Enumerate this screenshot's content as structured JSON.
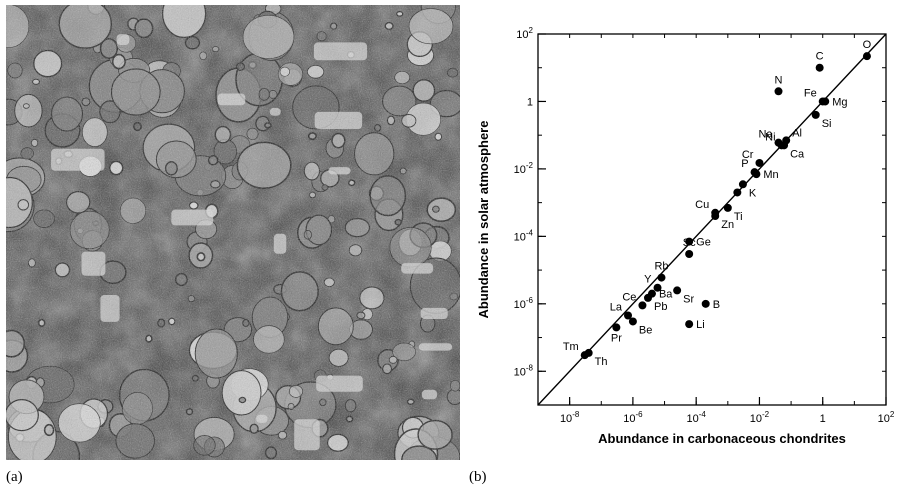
{
  "captions": {
    "a": "(a)",
    "b": "(b)"
  },
  "panel_a": {
    "type": "photograph",
    "subject": "meteorite-texture"
  },
  "chart_data": {
    "type": "scatter",
    "title": "",
    "xlabel": "Abundance in carbonaceous chondrites",
    "ylabel": "Abundance in solar atmosphere",
    "xscale": "log",
    "yscale": "log",
    "xlim": [
      1e-09,
      100
    ],
    "ylim": [
      1e-09,
      100
    ],
    "grid": false,
    "reference_line": "y = x",
    "x_ticks": [
      {
        "value": 1e-08,
        "label": "10-8",
        "base": "10",
        "exp": "-8"
      },
      {
        "value": 1e-06,
        "label": "10-6",
        "base": "10",
        "exp": "-6"
      },
      {
        "value": 0.0001,
        "label": "10-4",
        "base": "10",
        "exp": "-4"
      },
      {
        "value": 0.01,
        "label": "10-2",
        "base": "10",
        "exp": "-2"
      },
      {
        "value": 1,
        "label": "1",
        "base": "1",
        "exp": ""
      },
      {
        "value": 100,
        "label": "102",
        "base": "10",
        "exp": "2"
      }
    ],
    "y_ticks": [
      {
        "value": 100,
        "label": "102",
        "base": "10",
        "exp": "2"
      },
      {
        "value": 1,
        "label": "1",
        "base": "1",
        "exp": ""
      },
      {
        "value": 0.01,
        "label": "10-2",
        "base": "10",
        "exp": "-2"
      },
      {
        "value": 0.0001,
        "label": "10-4",
        "base": "10",
        "exp": "-4"
      },
      {
        "value": 1e-06,
        "label": "10-6",
        "base": "10",
        "exp": "-6"
      },
      {
        "value": 1e-08,
        "label": "10-8",
        "base": "10",
        "exp": "-8"
      }
    ],
    "points": [
      {
        "label": "O",
        "x": 25,
        "y": 22,
        "pos": "above"
      },
      {
        "label": "C",
        "x": 0.8,
        "y": 10,
        "pos": "above"
      },
      {
        "label": "N",
        "x": 0.04,
        "y": 2,
        "pos": "above"
      },
      {
        "label": "Fe",
        "x": 1,
        "y": 1,
        "pos": "leftup"
      },
      {
        "label": "Mg",
        "x": 1.2,
        "y": 1,
        "pos": "right"
      },
      {
        "label": "Si",
        "x": 0.6,
        "y": 0.4,
        "pos": "rightdown"
      },
      {
        "label": "Na",
        "x": 0.04,
        "y": 0.06,
        "pos": "leftup"
      },
      {
        "label": "Al",
        "x": 0.07,
        "y": 0.07,
        "pos": "rightup"
      },
      {
        "label": "Ni",
        "x": 0.05,
        "y": 0.05,
        "pos": "leftup"
      },
      {
        "label": "Ca",
        "x": 0.06,
        "y": 0.05,
        "pos": "rightdown"
      },
      {
        "label": "Cr",
        "x": 0.01,
        "y": 0.015,
        "pos": "leftup"
      },
      {
        "label": "P",
        "x": 0.007,
        "y": 0.008,
        "pos": "leftup"
      },
      {
        "label": "Mn",
        "x": 0.008,
        "y": 0.007,
        "pos": "right"
      },
      {
        "label": "K",
        "x": 0.003,
        "y": 0.0035,
        "pos": "rightdown"
      },
      {
        "label": "",
        "x": 0.002,
        "y": 0.002,
        "pos": "none"
      },
      {
        "label": "Cu",
        "x": 0.0004,
        "y": 0.0005,
        "pos": "leftup"
      },
      {
        "label": "Ti",
        "x": 0.001,
        "y": 0.0007,
        "pos": "rightdown"
      },
      {
        "label": "Zn",
        "x": 0.0004,
        "y": 0.0004,
        "pos": "rightdown"
      },
      {
        "label": "Sc",
        "x": 6e-05,
        "y": 3e-05,
        "pos": "above"
      },
      {
        "label": "Ge",
        "x": 6e-05,
        "y": 7e-05,
        "pos": "right"
      },
      {
        "label": "Rb",
        "x": 8e-06,
        "y": 6e-06,
        "pos": "above"
      },
      {
        "label": "Sr",
        "x": 2.5e-05,
        "y": 2.5e-06,
        "pos": "rightdown"
      },
      {
        "label": "Y",
        "x": 6e-06,
        "y": 3e-06,
        "pos": "leftup"
      },
      {
        "label": "Ba",
        "x": 4e-06,
        "y": 2e-06,
        "pos": "right"
      },
      {
        "label": "Pb",
        "x": 3e-06,
        "y": 1.5e-06,
        "pos": "rightdown"
      },
      {
        "label": "Ce",
        "x": 2e-06,
        "y": 9e-07,
        "pos": "leftup"
      },
      {
        "label": "B",
        "x": 0.0002,
        "y": 1e-06,
        "pos": "right"
      },
      {
        "label": "La",
        "x": 7e-07,
        "y": 4.5e-07,
        "pos": "leftup"
      },
      {
        "label": "Pr",
        "x": 3e-07,
        "y": 2e-07,
        "pos": "below"
      },
      {
        "label": "Be",
        "x": 1e-06,
        "y": 3e-07,
        "pos": "rightdown"
      },
      {
        "label": "Li",
        "x": 6e-05,
        "y": 2.5e-07,
        "pos": "right"
      },
      {
        "label": "Tm",
        "x": 3e-08,
        "y": 3e-08,
        "pos": "leftup"
      },
      {
        "label": "Th",
        "x": 4e-08,
        "y": 3.5e-08,
        "pos": "rightdown"
      }
    ]
  }
}
